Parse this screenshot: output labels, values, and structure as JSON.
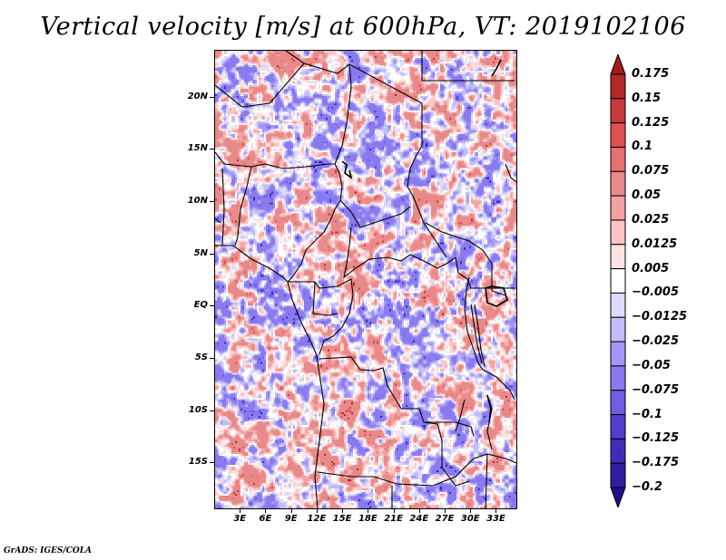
{
  "title": "Vertical velocity [m/s] at 600hPa, VT: 2019102106",
  "credit": "GrADS: IGES/COLA",
  "map": {
    "variable": "Vertical velocity",
    "units": "m/s",
    "level": "600hPa",
    "valid_time": "2019102106",
    "lon_range": [
      0,
      35.5
    ],
    "lat_range": [
      -19.5,
      24.5
    ],
    "y_ticks": [
      {
        "label": "20N",
        "lat": 20
      },
      {
        "label": "15N",
        "lat": 15
      },
      {
        "label": "10N",
        "lat": 10
      },
      {
        "label": "5N",
        "lat": 5
      },
      {
        "label": "EQ",
        "lat": 0
      },
      {
        "label": "5S",
        "lat": -5
      },
      {
        "label": "10S",
        "lat": -10
      },
      {
        "label": "15S",
        "lat": -15
      }
    ],
    "x_ticks": [
      {
        "label": "3E",
        "lon": 3
      },
      {
        "label": "6E",
        "lon": 6
      },
      {
        "label": "9E",
        "lon": 9
      },
      {
        "label": "12E",
        "lon": 12
      },
      {
        "label": "15E",
        "lon": 15
      },
      {
        "label": "18E",
        "lon": 18
      },
      {
        "label": "21E",
        "lon": 21
      },
      {
        "label": "24E",
        "lon": 24
      },
      {
        "label": "27E",
        "lon": 27
      },
      {
        "label": "30E",
        "lon": 30
      },
      {
        "label": "33E",
        "lon": 33
      }
    ]
  },
  "colorbar": {
    "levels": [
      "0.175",
      "0.15",
      "0.125",
      "0.1",
      "0.075",
      "0.05",
      "0.025",
      "0.0125",
      "0.005",
      "-0.005",
      "-0.0125",
      "-0.025",
      "-0.05",
      "-0.075",
      "-0.1",
      "-0.125",
      "-0.175",
      "-0.2"
    ],
    "colors": [
      "#a11c1c",
      "#b52828",
      "#c83a3a",
      "#e05050",
      "#e66f70",
      "#e8898a",
      "#f2a2a2",
      "#fac4c4",
      "#fde2e2",
      "#ffffff",
      "#dcdcfa",
      "#c2bcf8",
      "#a496f8",
      "#8a7af0",
      "#6e5fe0",
      "#4f40cc",
      "#3f2cb8",
      "#2d1ea0",
      "#20108a"
    ],
    "arrow_top_color": "#a11c1c",
    "arrow_bottom_color": "#20108a"
  }
}
